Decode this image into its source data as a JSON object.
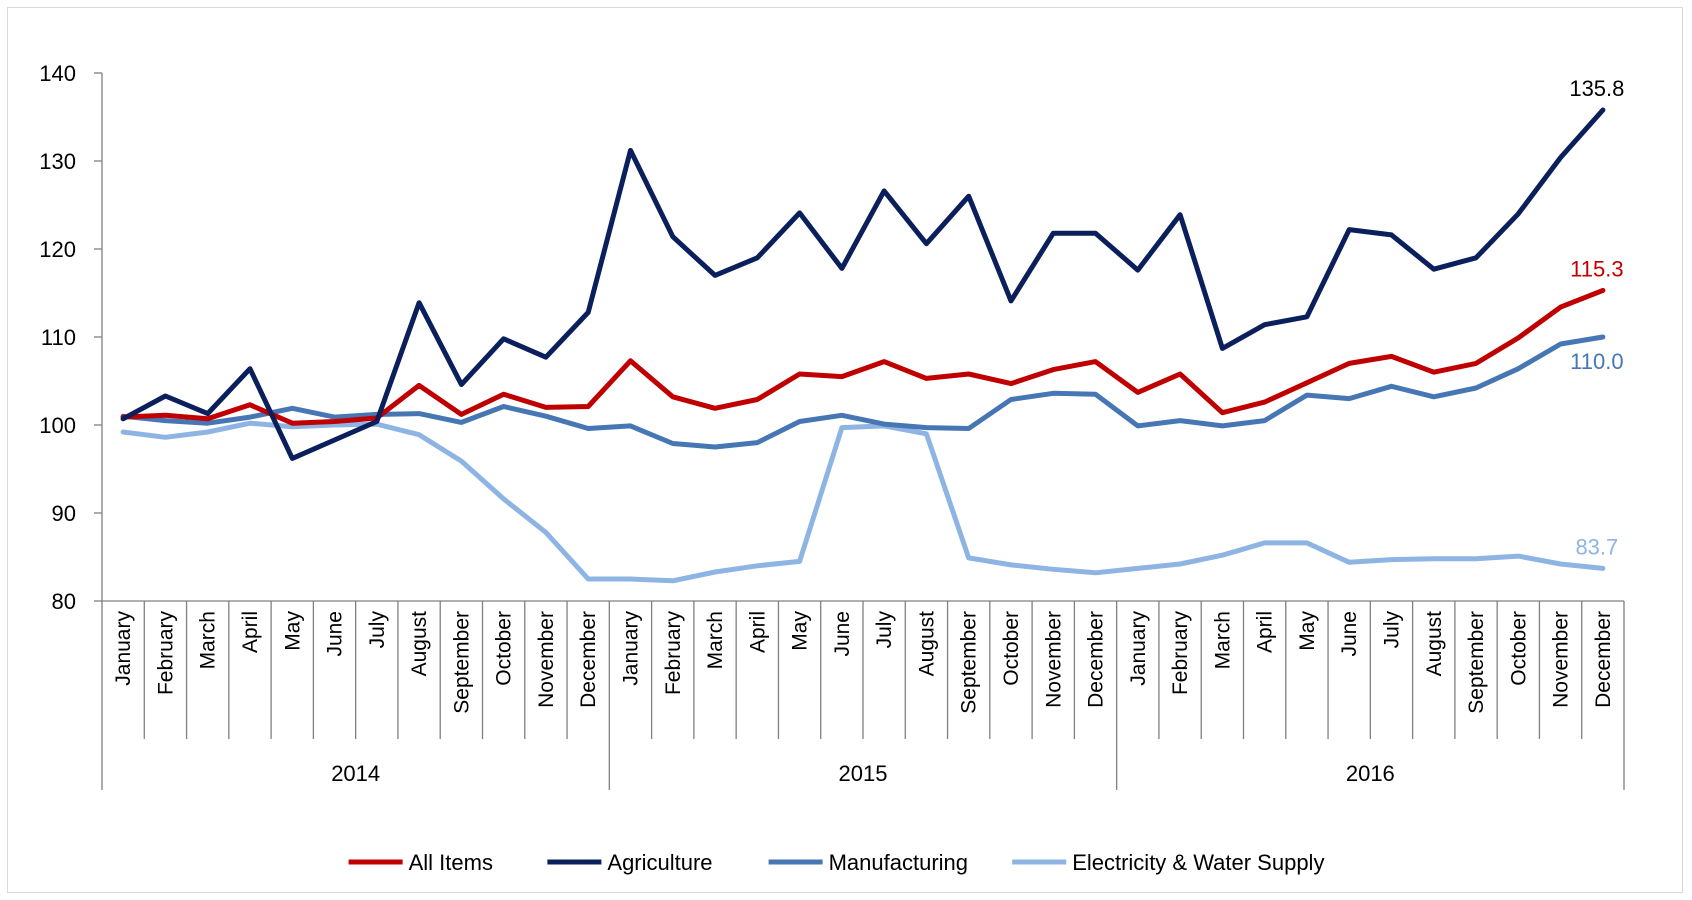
{
  "chart_data": {
    "type": "line",
    "title": "",
    "xlabel": "",
    "ylabel": "",
    "ylim": [
      80,
      140
    ],
    "yticks": [
      80,
      90,
      100,
      110,
      120,
      130,
      140
    ],
    "grid": false,
    "legend_position": "bottom",
    "years": [
      {
        "label": "2014",
        "months": [
          "January",
          "February",
          "March",
          "April",
          "May",
          "June",
          "July",
          "August",
          "September",
          "October",
          "November",
          "December"
        ]
      },
      {
        "label": "2015",
        "months": [
          "January",
          "February",
          "March",
          "April",
          "May",
          "June",
          "July",
          "August",
          "September",
          "October",
          "November",
          "December"
        ]
      },
      {
        "label": "2016",
        "months": [
          "January",
          "February",
          "March",
          "April",
          "May",
          "June",
          "July",
          "August",
          "September",
          "October",
          "November",
          "December"
        ]
      }
    ],
    "series": [
      {
        "name": "All Items",
        "color": "#c00000",
        "end_label": "115.3",
        "values": [
          100.9,
          101.1,
          100.7,
          102.3,
          100.2,
          100.4,
          100.8,
          104.5,
          101.2,
          103.5,
          102.0,
          102.1,
          107.3,
          103.2,
          101.9,
          102.9,
          105.8,
          105.5,
          107.2,
          105.3,
          105.8,
          104.7,
          106.3,
          107.2,
          103.7,
          105.8,
          101.4,
          102.6,
          104.8,
          107.0,
          107.8,
          106.0,
          107.0,
          109.9,
          113.4,
          115.3
        ]
      },
      {
        "name": "Agriculture",
        "color": "#0a1f5c",
        "end_label": "135.8",
        "values": [
          100.7,
          103.3,
          101.3,
          106.4,
          96.2,
          98.3,
          100.4,
          113.9,
          104.6,
          109.8,
          107.7,
          112.8,
          131.2,
          121.4,
          117.0,
          119.0,
          124.1,
          117.8,
          126.6,
          120.6,
          126.0,
          114.1,
          121.8,
          121.8,
          117.6,
          123.9,
          108.7,
          111.4,
          112.3,
          122.2,
          121.6,
          117.7,
          119.0,
          124.0,
          130.4,
          135.8
        ]
      },
      {
        "name": "Manufacturing",
        "color": "#4677b4",
        "end_label": "110.0",
        "values": [
          101.0,
          100.5,
          100.2,
          100.9,
          101.9,
          100.9,
          101.2,
          101.3,
          100.3,
          102.1,
          101.0,
          99.6,
          99.9,
          97.9,
          97.5,
          98.0,
          100.4,
          101.1,
          100.1,
          99.7,
          99.6,
          102.9,
          103.6,
          103.5,
          99.9,
          100.5,
          99.9,
          100.5,
          103.4,
          103.0,
          104.4,
          103.2,
          104.2,
          106.4,
          109.2,
          110.0
        ]
      },
      {
        "name": "Electricity & Water Supply",
        "color": "#8db4e2",
        "end_label": "83.7",
        "values": [
          99.2,
          98.6,
          99.2,
          100.2,
          99.8,
          100.0,
          100.1,
          98.9,
          95.9,
          91.6,
          87.8,
          82.5,
          82.5,
          82.3,
          83.3,
          84.0,
          84.5,
          99.7,
          99.9,
          99.0,
          84.9,
          84.1,
          83.6,
          83.2,
          83.7,
          84.2,
          85.2,
          86.6,
          86.6,
          84.4,
          84.7,
          84.8,
          84.8,
          85.1,
          84.2,
          83.7
        ]
      }
    ]
  }
}
